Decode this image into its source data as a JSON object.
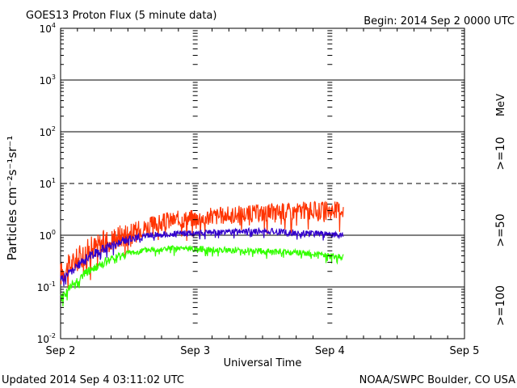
{
  "header": {
    "title": "GOES13 Proton Flux (5 minute data)",
    "begin": "Begin: 2014 Sep 2 0000 UTC"
  },
  "footer": {
    "updated": "Updated 2014 Sep  4 03:11:02 UTC",
    "credit": "NOAA/SWPC Boulder, CO USA"
  },
  "axes": {
    "xlabel": "Universal Time",
    "ylabel": "Particles cm⁻²s⁻¹sr⁻¹",
    "x_ticks": [
      "Sep 2",
      "Sep 3",
      "Sep 4",
      "Sep 5"
    ],
    "y_ticks": [
      {
        "base": "10",
        "exp": "-2"
      },
      {
        "base": "10",
        "exp": "-1"
      },
      {
        "base": "10",
        "exp": "0"
      },
      {
        "base": "10",
        "exp": "1"
      },
      {
        "base": "10",
        "exp": "2"
      },
      {
        "base": "10",
        "exp": "3"
      },
      {
        "base": "10",
        "exp": "4"
      }
    ]
  },
  "legend": {
    "unit": "MeV",
    "items": [
      {
        "label": ">=10",
        "color": "#ff3300"
      },
      {
        "label": ">=50",
        "color": "#3300cc"
      },
      {
        "label": ">=100",
        "color": "#33ff00"
      }
    ]
  },
  "chart_data": {
    "type": "line",
    "title": "GOES13 Proton Flux (5 minute data)",
    "xlabel": "Universal Time",
    "ylabel": "Particles cm-2 s-1 sr-1",
    "y_scale": "log",
    "ylim": [
      0.01,
      10000
    ],
    "xlim_days": [
      0,
      3
    ],
    "x_unit": "days since 2014 Sep 2 0000 UTC",
    "dashed_threshold": 10,
    "series": [
      {
        "name": ">=10 MeV",
        "color": "#ff3300",
        "points": [
          [
            0.0,
            0.18
          ],
          [
            0.1,
            0.3
          ],
          [
            0.2,
            0.5
          ],
          [
            0.35,
            0.8
          ],
          [
            0.5,
            1.1
          ],
          [
            0.65,
            1.5
          ],
          [
            0.8,
            1.9
          ],
          [
            1.0,
            2.2
          ],
          [
            1.2,
            2.4
          ],
          [
            1.4,
            2.6
          ],
          [
            1.6,
            2.8
          ],
          [
            1.8,
            3.0
          ],
          [
            2.0,
            3.0
          ],
          [
            2.1,
            3.2
          ]
        ],
        "noise": 0.35
      },
      {
        "name": ">=50 MeV",
        "color": "#3300cc",
        "points": [
          [
            0.0,
            0.14
          ],
          [
            0.1,
            0.22
          ],
          [
            0.2,
            0.38
          ],
          [
            0.35,
            0.6
          ],
          [
            0.5,
            0.85
          ],
          [
            0.65,
            1.0
          ],
          [
            0.8,
            1.05
          ],
          [
            1.0,
            1.1
          ],
          [
            1.2,
            1.15
          ],
          [
            1.4,
            1.2
          ],
          [
            1.6,
            1.18
          ],
          [
            1.8,
            1.1
          ],
          [
            2.0,
            1.05
          ],
          [
            2.1,
            1.0
          ]
        ],
        "noise": 0.12
      },
      {
        "name": ">=100 MeV",
        "color": "#33ff00",
        "points": [
          [
            0.0,
            0.06
          ],
          [
            0.1,
            0.12
          ],
          [
            0.2,
            0.2
          ],
          [
            0.35,
            0.32
          ],
          [
            0.5,
            0.45
          ],
          [
            0.65,
            0.52
          ],
          [
            0.8,
            0.55
          ],
          [
            1.0,
            0.55
          ],
          [
            1.2,
            0.52
          ],
          [
            1.4,
            0.5
          ],
          [
            1.6,
            0.48
          ],
          [
            1.8,
            0.45
          ],
          [
            2.0,
            0.4
          ],
          [
            2.1,
            0.38
          ]
        ],
        "noise": 0.12
      }
    ]
  }
}
